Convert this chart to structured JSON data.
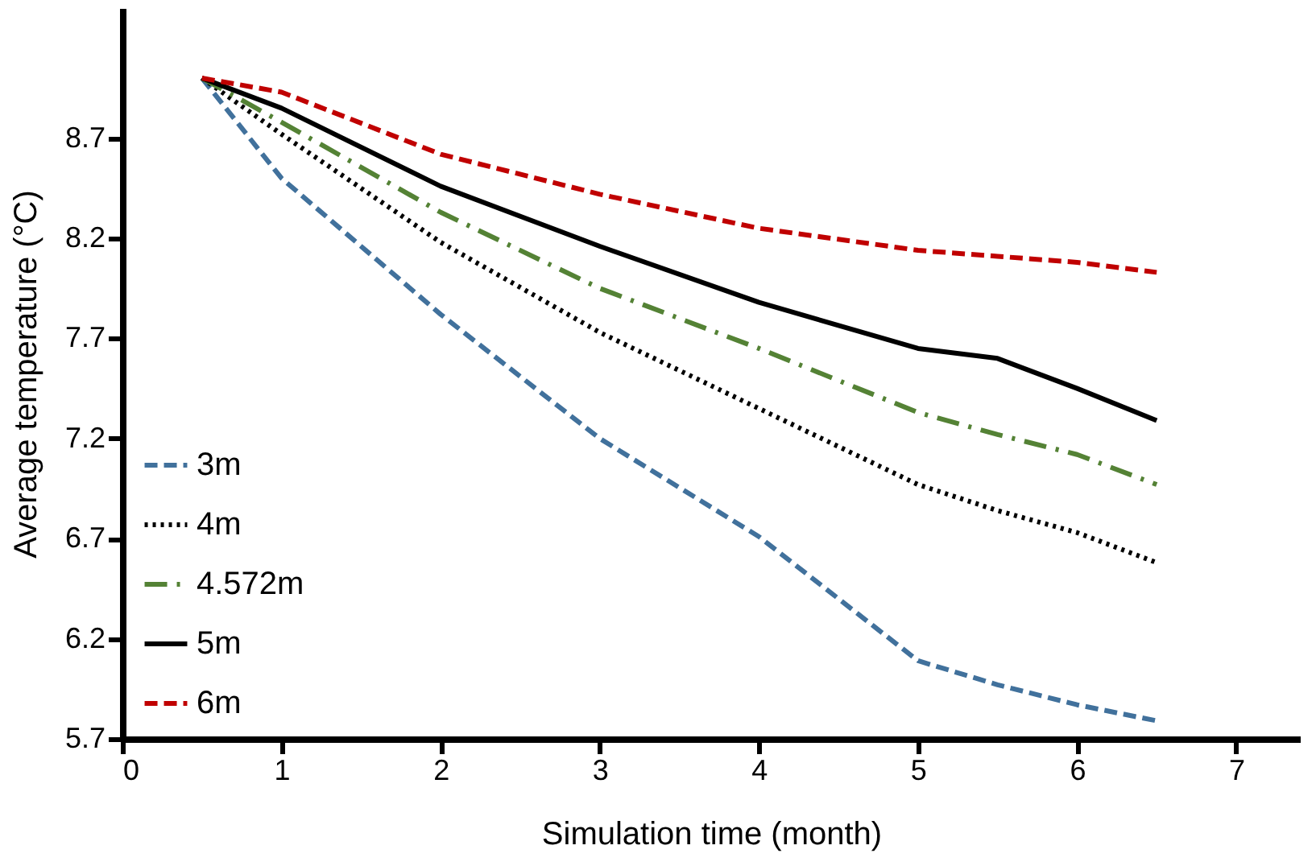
{
  "chart_data": {
    "type": "line",
    "xlabel": "Simulation time (month)",
    "ylabel": "Average temperature (°C)",
    "x": [
      0.5,
      1,
      2,
      3,
      4,
      5,
      5.5,
      6,
      6.5
    ],
    "series": [
      {
        "name": "3m",
        "color": "#41719c",
        "line_style": "dashed",
        "values": [
          9.0,
          8.5,
          7.82,
          7.2,
          6.71,
          6.09,
          5.97,
          5.87,
          5.79
        ]
      },
      {
        "name": "4m",
        "color": "#000000",
        "line_style": "dotted",
        "values": [
          9.0,
          8.72,
          8.18,
          7.73,
          7.35,
          6.97,
          6.84,
          6.73,
          6.58
        ]
      },
      {
        "name": "4.572m",
        "color": "#548235",
        "line_style": "dashdot",
        "values": [
          9.0,
          8.78,
          8.33,
          7.95,
          7.65,
          7.33,
          7.22,
          7.12,
          6.97
        ]
      },
      {
        "name": "5m",
        "color": "#000000",
        "line_style": "solid",
        "values": [
          9.0,
          8.85,
          8.46,
          8.16,
          7.88,
          7.65,
          7.6,
          7.45,
          7.29
        ]
      },
      {
        "name": "6m",
        "color": "#c00000",
        "line_style": "dashed",
        "values": [
          9.0,
          8.93,
          8.62,
          8.42,
          8.25,
          8.14,
          8.11,
          8.08,
          8.03
        ]
      }
    ],
    "xlim": [
      0,
      7.4
    ],
    "xticks": [
      0,
      1,
      2,
      3,
      4,
      5,
      6,
      7
    ],
    "ylim": [
      5.7,
      9.35
    ],
    "yticks": [
      5.7,
      6.2,
      6.7,
      7.2,
      7.7,
      8.2,
      8.7
    ],
    "grid": false,
    "legend": "bottom left",
    "marker": "none"
  }
}
